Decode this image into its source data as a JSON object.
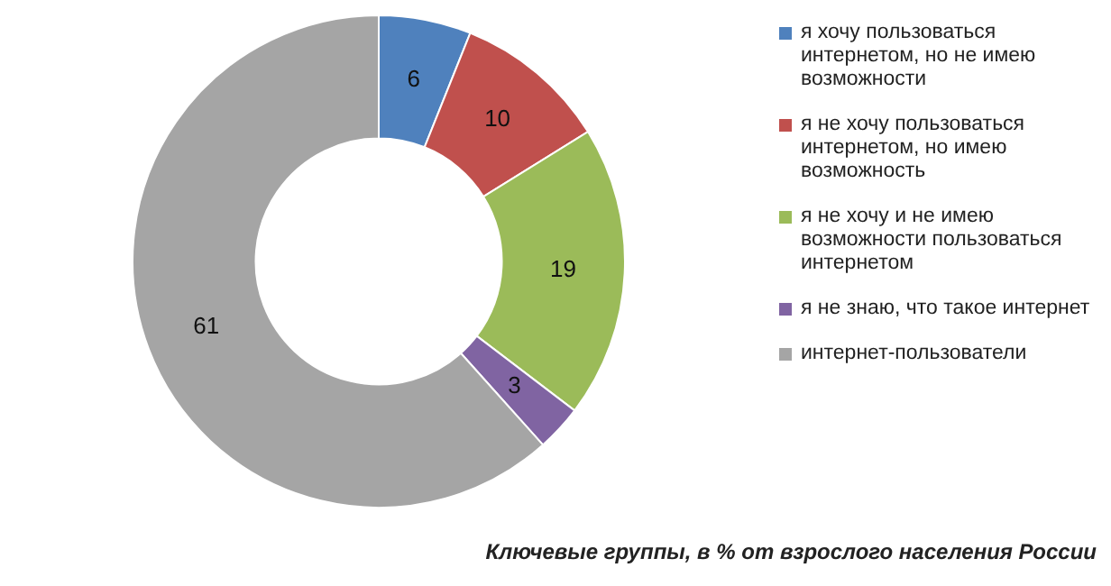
{
  "chart_data": {
    "type": "donut",
    "categories": [
      "я хочу пользоваться интернетом, но не имею возможности",
      "я не хочу пользоваться интернетом, но имею возможность",
      "я не хочу и не имею возможности пользоваться интернетом",
      "я не знаю, что такое интернет",
      "интернет-пользователи"
    ],
    "values": [
      6,
      10,
      19,
      3,
      61
    ],
    "colors": [
      "#4f81bd",
      "#c0504d",
      "#9bbb59",
      "#8064a2",
      "#a5a5a5"
    ],
    "data_labels": true,
    "legend": "right",
    "annotations": [
      "Ключевые группы, в % от взрослого населения России"
    ]
  }
}
